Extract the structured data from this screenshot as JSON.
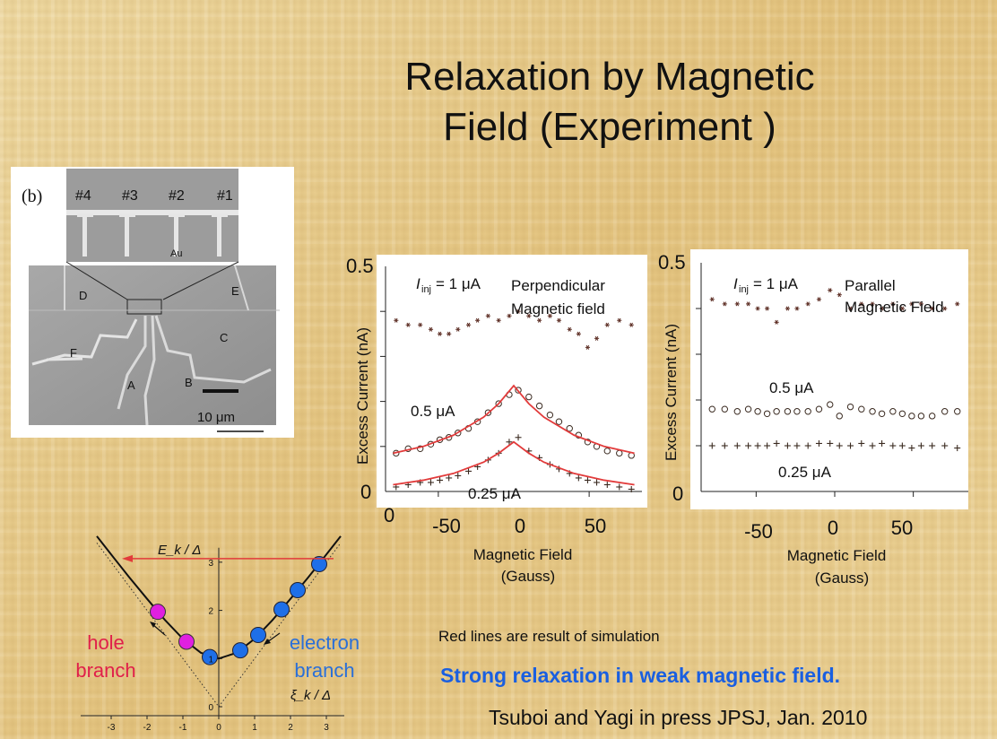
{
  "slide": {
    "title_line1": "Relaxation by Magnetic",
    "title_line2": "Field (Experiment )",
    "sim_note": "Red lines  are  result of simulation",
    "highlight": "Strong relaxation in weak magnetic field.",
    "citation": "Tsuboi and Yagi  in press JPSJ, Jan. 2010",
    "accent_color": "#1a5fe0",
    "sim_line_color": "#e23b3b"
  },
  "sem_image": {
    "panel_label": "(b)",
    "probe_labels": [
      "#4",
      "#3",
      "#2",
      "#1"
    ],
    "region_labels": [
      "D",
      "E",
      "C",
      "F",
      "A",
      "B"
    ],
    "material_label": "Au",
    "scale_label": "10 μm"
  },
  "chart_data": [
    {
      "type": "scatter",
      "x_label_line1": "Magnetic Field",
      "x_label_line2": "(Gauss)",
      "ylabel": "Excess Current  (nA)",
      "xlim": [
        -85,
        85
      ],
      "ylim": [
        0,
        0.5
      ],
      "x_ticks": [
        "-50",
        "0",
        "50"
      ],
      "y_ticks_printed": [
        "0",
        "0.5"
      ],
      "extra_origin_label": "0",
      "annotation_current_prefix": "I",
      "annotation_current_sub": "inj",
      "annotation_current_value": "= 1 μA",
      "annotation_field_line1": "Perpendicular",
      "annotation_field_line2": "Magnetic field",
      "series": [
        {
          "name": "1 μA",
          "marker": "asterisk",
          "x": [
            -78,
            -70,
            -62,
            -55,
            -49,
            -43,
            -37,
            -30,
            -24,
            -17,
            -10,
            -3,
            3,
            10,
            17,
            24,
            30,
            37,
            43,
            49,
            55,
            62,
            70,
            78
          ],
          "y": [
            0.38,
            0.37,
            0.37,
            0.36,
            0.35,
            0.35,
            0.36,
            0.37,
            0.38,
            0.39,
            0.38,
            0.39,
            0.4,
            0.39,
            0.38,
            0.39,
            0.38,
            0.36,
            0.35,
            0.32,
            0.34,
            0.37,
            0.38,
            0.37
          ]
        },
        {
          "name": "0.5 μA",
          "marker": "circle",
          "x": [
            -78,
            -70,
            -62,
            -55,
            -49,
            -43,
            -37,
            -30,
            -24,
            -17,
            -10,
            -3,
            3,
            10,
            17,
            24,
            30,
            37,
            43,
            49,
            55,
            62,
            70,
            78
          ],
          "y": [
            0.085,
            0.095,
            0.095,
            0.105,
            0.115,
            0.12,
            0.13,
            0.14,
            0.155,
            0.175,
            0.195,
            0.215,
            0.225,
            0.21,
            0.19,
            0.17,
            0.155,
            0.14,
            0.125,
            0.11,
            0.1,
            0.09,
            0.085,
            0.08
          ]
        },
        {
          "name": "0.25 μA",
          "marker": "plus",
          "x": [
            -78,
            -70,
            -62,
            -55,
            -49,
            -43,
            -37,
            -30,
            -24,
            -17,
            -10,
            -3,
            3,
            10,
            17,
            24,
            30,
            37,
            43,
            49,
            55,
            62,
            70,
            78
          ],
          "y": [
            0.01,
            0.015,
            0.02,
            0.02,
            0.025,
            0.03,
            0.035,
            0.045,
            0.055,
            0.07,
            0.085,
            0.11,
            0.12,
            0.09,
            0.075,
            0.06,
            0.05,
            0.04,
            0.03,
            0.025,
            0.02,
            0.015,
            0.01,
            0.005
          ]
        }
      ],
      "simulation_lines": [
        {
          "x": [
            -80,
            -60,
            -40,
            -20,
            -10,
            0,
            10,
            20,
            40,
            60,
            80
          ],
          "y": [
            0.085,
            0.1,
            0.125,
            0.165,
            0.195,
            0.235,
            0.195,
            0.165,
            0.125,
            0.1,
            0.085
          ]
        },
        {
          "x": [
            -80,
            -60,
            -40,
            -20,
            -10,
            0,
            10,
            20,
            40,
            60,
            80
          ],
          "y": [
            0.015,
            0.025,
            0.04,
            0.065,
            0.085,
            0.11,
            0.085,
            0.065,
            0.04,
            0.025,
            0.015
          ]
        }
      ],
      "curve_labels": [
        "0.5 μA",
        "0.25 μA"
      ]
    },
    {
      "type": "scatter",
      "x_label_line1": "Magnetic Field",
      "x_label_line2": "(Gauss)",
      "ylabel": "Excess Current  (nA)",
      "xlim": [
        -85,
        85
      ],
      "ylim": [
        0,
        0.5
      ],
      "x_ticks": [
        "-50",
        "0",
        "50"
      ],
      "y_ticks_printed": [
        "0",
        "0.5"
      ],
      "annotation_current_prefix": "I",
      "annotation_current_sub": "inj",
      "annotation_current_value": "= 1 μA",
      "annotation_field_line1": "Parallel",
      "annotation_field_line2": "Magnetic Field",
      "series": [
        {
          "name": "1 μA",
          "marker": "asterisk",
          "x": [
            -78,
            -70,
            -62,
            -55,
            -49,
            -43,
            -37,
            -30,
            -24,
            -17,
            -10,
            -3,
            3,
            10,
            17,
            24,
            30,
            37,
            43,
            49,
            55,
            62,
            70,
            78
          ],
          "y": [
            0.42,
            0.41,
            0.41,
            0.41,
            0.4,
            0.4,
            0.37,
            0.4,
            0.4,
            0.41,
            0.42,
            0.44,
            0.43,
            0.4,
            0.41,
            0.41,
            0.4,
            0.41,
            0.4,
            0.41,
            0.41,
            0.4,
            0.4,
            0.41
          ]
        },
        {
          "name": "0.5 μA",
          "marker": "circle",
          "x": [
            -78,
            -70,
            -62,
            -55,
            -49,
            -43,
            -37,
            -30,
            -24,
            -17,
            -10,
            -3,
            3,
            10,
            17,
            24,
            30,
            37,
            43,
            49,
            55,
            62,
            70,
            78
          ],
          "y": [
            0.18,
            0.18,
            0.175,
            0.18,
            0.175,
            0.17,
            0.175,
            0.175,
            0.175,
            0.175,
            0.18,
            0.19,
            0.165,
            0.185,
            0.18,
            0.175,
            0.17,
            0.175,
            0.17,
            0.165,
            0.165,
            0.165,
            0.175,
            0.175
          ]
        },
        {
          "name": "0.25 μA",
          "marker": "plus",
          "x": [
            -78,
            -70,
            -62,
            -55,
            -49,
            -43,
            -37,
            -30,
            -24,
            -17,
            -10,
            -3,
            3,
            10,
            17,
            24,
            30,
            37,
            43,
            49,
            55,
            62,
            70,
            78
          ],
          "y": [
            0.1,
            0.1,
            0.1,
            0.1,
            0.1,
            0.1,
            0.105,
            0.1,
            0.1,
            0.1,
            0.105,
            0.105,
            0.1,
            0.1,
            0.105,
            0.1,
            0.105,
            0.1,
            0.1,
            0.095,
            0.1,
            0.1,
            0.1,
            0.095
          ]
        }
      ],
      "curve_labels": [
        "0.5 μA",
        "0.25 μA"
      ]
    },
    {
      "type": "line",
      "ylabel": "E_k / Δ",
      "xlabel": "ξ_k / Δ",
      "xlim": [
        -3.5,
        3.5
      ],
      "ylim": [
        0,
        3.5
      ],
      "x_ticks": [
        "-3",
        "-2",
        "-1",
        "0",
        "1",
        "2",
        "3"
      ],
      "y_ticks": [
        "0",
        "1",
        "2",
        "3"
      ],
      "dispersion_curve": {
        "x": [
          -3.4,
          -3.0,
          -2.5,
          -2.0,
          -1.5,
          -1.0,
          -0.5,
          0,
          0.5,
          1.0,
          1.5,
          2.0,
          2.5,
          3.0,
          3.4
        ],
        "y": [
          3.54,
          3.16,
          2.69,
          2.24,
          1.8,
          1.41,
          1.12,
          1.0,
          1.12,
          1.41,
          1.8,
          2.24,
          2.69,
          3.16,
          3.54
        ]
      },
      "asymptote_lines": [
        {
          "x": [
            -3.4,
            0
          ],
          "y": [
            3.4,
            0
          ]
        },
        {
          "x": [
            0,
            3.4
          ],
          "y": [
            0,
            3.4
          ]
        }
      ],
      "hole_points": {
        "x": [
          -1.7,
          -0.9
        ],
        "y": [
          1.97,
          1.35
        ]
      },
      "electron_points": {
        "x": [
          -0.25,
          0.6,
          1.1,
          1.75,
          2.2,
          2.8
        ],
        "y": [
          1.03,
          1.17,
          1.49,
          2.02,
          2.42,
          2.96
        ]
      },
      "hole_label_line1": "hole",
      "hole_label_line2": "branch",
      "electron_label_line1": "electron",
      "electron_label_line2": "branch",
      "hole_color": "#e020e0",
      "electron_color": "#1e6fe8",
      "hole_text_color": "#e0204a",
      "electron_text_color": "#2a6fd8",
      "arrow_color": "#e23b3b"
    }
  ]
}
